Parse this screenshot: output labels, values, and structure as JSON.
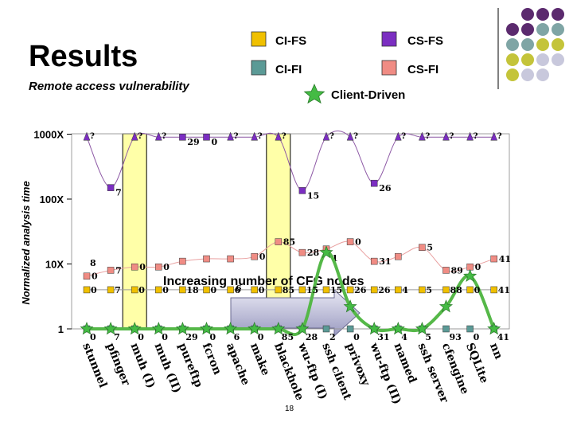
{
  "slide": {
    "title": "Results",
    "subtitle": "Remote access vulnerability",
    "page_number": "18"
  },
  "colors": {
    "cifs": "#f0c000",
    "csfs": "#7b2ec1",
    "cifi": "#5b9a96",
    "csfi": "#f08c84",
    "client": "#44bb44",
    "dot_purple": "#5b2a6e",
    "dot_teal": "#7fa5a5",
    "dot_olive": "#c4c43a",
    "dot_grey": "#c8c8dc"
  },
  "chart_data": {
    "type": "line",
    "title": "",
    "ylabel": "Normalized analysis time",
    "yscale": "log",
    "ylim": [
      1,
      1000
    ],
    "yticks": [
      {
        "value": 1,
        "label": "1"
      },
      {
        "value": 10,
        "label": "10X"
      },
      {
        "value": 100,
        "label": "100X"
      },
      {
        "value": 1000,
        "label": "1000X"
      }
    ],
    "legend": [
      {
        "key": "cifs",
        "label": "CI-FS"
      },
      {
        "key": "csfs",
        "label": "CS-FS"
      },
      {
        "key": "cifi",
        "label": "CI-FI"
      },
      {
        "key": "csfi",
        "label": "CS-FI"
      },
      {
        "key": "client",
        "label": "Client-Driven"
      }
    ],
    "categories": [
      "stunnel",
      "pfinger",
      "muh (I)",
      "muh (II)",
      "pureftp",
      "fcron",
      "apache",
      "make",
      "blackhole",
      "wu-ftp (I)",
      "ssh client",
      "privoxy",
      "wu-ftp (II)",
      "named",
      "ssh server",
      "cfengine",
      "SQLite",
      "nn"
    ],
    "highlighted": [
      "muh (I)",
      "blackhole"
    ],
    "series": [
      {
        "key": "cifi",
        "name": "CI-FI",
        "values": [
          1,
          1,
          1,
          1,
          1,
          1,
          1,
          1,
          1,
          1,
          1,
          1,
          1,
          1,
          1,
          1,
          1,
          1
        ],
        "labels": [
          "0",
          "7",
          "0",
          "0",
          "29",
          "0",
          "6",
          "0",
          "85",
          "28",
          "2",
          "0",
          "31",
          "4",
          "5",
          "93",
          "0",
          "41"
        ]
      },
      {
        "key": "cifs",
        "name": "CI-FS",
        "values": [
          4,
          4,
          4,
          4,
          4,
          4,
          4,
          4,
          4,
          4,
          4,
          4,
          4,
          4,
          4,
          4,
          4,
          4
        ],
        "labels": [
          "0",
          "7",
          "0",
          "0",
          "18",
          "0",
          "6",
          "0",
          "85",
          "15",
          "15",
          "26",
          "26",
          "4",
          "5",
          "88",
          "0",
          "41"
        ]
      },
      {
        "key": "csfi",
        "name": "CS-FI",
        "values": [
          6.5,
          8,
          9,
          9,
          11,
          12,
          12,
          13,
          22,
          15,
          17,
          22,
          11,
          13,
          18,
          8,
          9,
          12
        ],
        "labels": [
          "0",
          "7",
          "0",
          "0",
          "",
          "",
          "",
          "0",
          "85",
          "28",
          "",
          "0",
          "31",
          "",
          "5",
          "89",
          "0",
          "41"
        ]
      },
      {
        "key": "csfs",
        "name": "CS-FS",
        "values": [
          900,
          150,
          900,
          900,
          900,
          900,
          900,
          900,
          900,
          135,
          900,
          900,
          175,
          900,
          900,
          900,
          900,
          900
        ],
        "labels": [
          "?",
          "7",
          "?",
          "?",
          "29",
          "0",
          "?",
          "?",
          "?",
          "15",
          "?",
          "?",
          "26",
          "?",
          "?",
          "?",
          "?",
          "?"
        ]
      },
      {
        "key": "client",
        "name": "Client-Driven",
        "values": [
          1,
          1,
          1,
          1,
          1,
          1,
          1,
          1,
          1,
          1,
          1,
          1,
          1,
          1,
          1,
          1,
          1,
          1
        ],
        "labels": []
      }
    ],
    "annotations": [
      {
        "text": "Increasing number of CFG nodes"
      },
      {
        "text": "1"
      },
      {
        "text": "6"
      },
      {
        "text": "8"
      }
    ]
  }
}
